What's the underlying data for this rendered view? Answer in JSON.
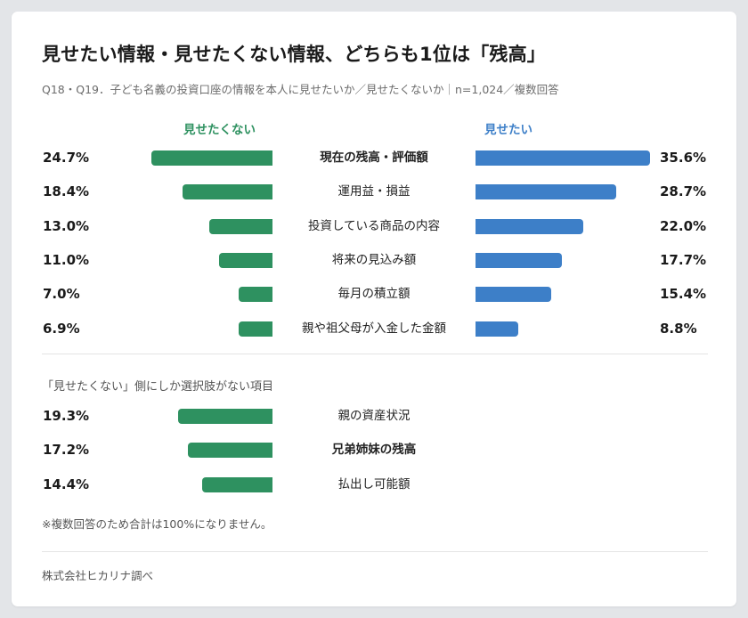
{
  "title": "見せたい情報・見せたくない情報、どちらも1位は「残高」",
  "subtitle": "Q18・Q19．子ども名義の投資口座の情報を本人に見せたいか／見せたくないか｜n=1,024／複数回答",
  "colors": {
    "green": "#2e9160",
    "blue": "#3d7fc8"
  },
  "chart_data": {
    "type": "bar",
    "left_header": "見せたくない",
    "right_header": "見せたい",
    "xlim": [
      0,
      36
    ],
    "categories": [
      "現在の残高・評価額",
      "運用益・損益",
      "投資している商品の内容",
      "将来の見込み額",
      "毎月の積立額",
      "親や祖父母が入金した金額"
    ],
    "series": [
      {
        "name": "見せたくない",
        "values": [
          24.7,
          18.4,
          13.0,
          11.0,
          7.0,
          6.9
        ],
        "labels": [
          "24.7%",
          "18.4%",
          "13.0%",
          "11.0%",
          "7.0%",
          "6.9%"
        ]
      },
      {
        "name": "見せたい",
        "values": [
          35.6,
          28.7,
          22.0,
          17.7,
          15.4,
          8.8
        ],
        "labels": [
          "35.6%",
          "28.7%",
          "22.0%",
          "17.7%",
          "15.4%",
          "8.8%"
        ]
      }
    ],
    "extra_section": {
      "label": "「見せたくない」側にしか選択肢がない項目",
      "categories": [
        "親の資産状況",
        "兄弟姉妹の残高",
        "払出し可能額"
      ],
      "values": [
        19.3,
        17.2,
        14.4
      ],
      "labels": [
        "19.3%",
        "17.2%",
        "14.4%"
      ]
    }
  },
  "note": "※複数回答のため合計は100%になりません。",
  "source": "株式会社ヒカリナ調べ"
}
